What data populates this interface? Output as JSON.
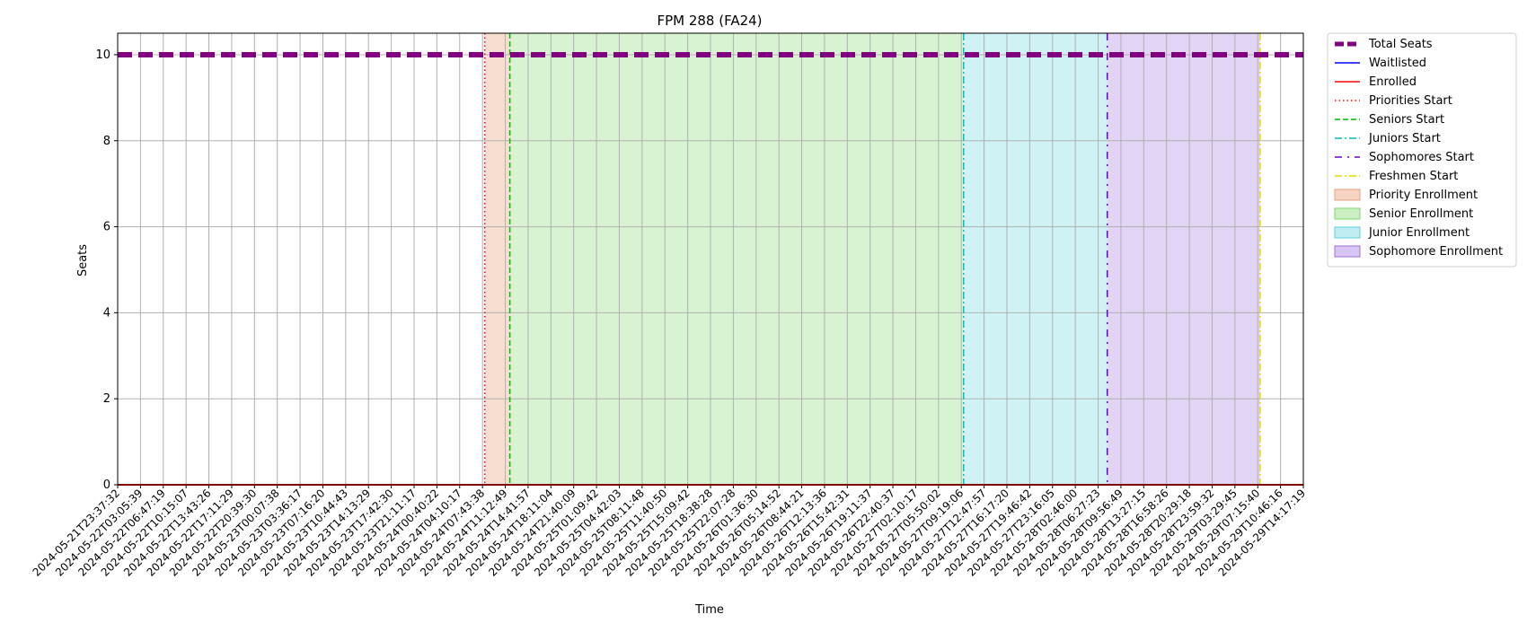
{
  "chart_data": {
    "type": "line",
    "title": "FPM 288 (FA24)",
    "xlabel": "Time",
    "ylabel": "Seats",
    "ylim": [
      0,
      10.5
    ],
    "yticks": [
      0,
      2,
      4,
      6,
      8,
      10
    ],
    "grid": true,
    "legend_position": "outside-right",
    "x": [
      "2024-05-21T23:37:32",
      "2024-05-22T03:05:39",
      "2024-05-22T06:47:19",
      "2024-05-22T10:15:07",
      "2024-05-22T13:43:26",
      "2024-05-22T17:11:29",
      "2024-05-22T20:39:30",
      "2024-05-23T00:07:38",
      "2024-05-23T03:36:17",
      "2024-05-23T07:16:20",
      "2024-05-23T10:44:43",
      "2024-05-23T14:13:29",
      "2024-05-23T17:42:30",
      "2024-05-23T21:11:17",
      "2024-05-24T00:40:22",
      "2024-05-24T04:10:17",
      "2024-05-24T07:43:38",
      "2024-05-24T11:12:49",
      "2024-05-24T14:41:57",
      "2024-05-24T18:11:04",
      "2024-05-24T21:40:09",
      "2024-05-25T01:09:42",
      "2024-05-25T04:42:03",
      "2024-05-25T08:11:48",
      "2024-05-25T11:40:50",
      "2024-05-25T15:09:42",
      "2024-05-25T18:38:28",
      "2024-05-25T22:07:28",
      "2024-05-26T01:36:30",
      "2024-05-26T05:14:52",
      "2024-05-26T08:44:21",
      "2024-05-26T12:13:36",
      "2024-05-26T15:42:31",
      "2024-05-26T19:11:37",
      "2024-05-26T22:40:37",
      "2024-05-27T02:10:17",
      "2024-05-27T05:50:02",
      "2024-05-27T09:19:06",
      "2024-05-27T12:47:57",
      "2024-05-27T16:17:20",
      "2024-05-27T19:46:42",
      "2024-05-27T23:16:05",
      "2024-05-28T02:46:00",
      "2024-05-28T06:27:23",
      "2024-05-28T09:56:49",
      "2024-05-28T13:27:15",
      "2024-05-28T16:58:26",
      "2024-05-28T20:29:18",
      "2024-05-28T23:59:32",
      "2024-05-29T03:29:45",
      "2024-05-29T07:15:40",
      "2024-05-29T10:46:16",
      "2024-05-29T14:17:19"
    ],
    "series": [
      {
        "name": "Total Seats",
        "style": "dashed-thick",
        "color": "#800080",
        "values": 10
      },
      {
        "name": "Waitlisted",
        "style": "solid",
        "color": "#0000ff",
        "values": 0
      },
      {
        "name": "Enrolled",
        "style": "solid",
        "color": "#ff0000",
        "values": 0
      }
    ],
    "markers": [
      {
        "name": "Priorities Start",
        "x": 16.1,
        "color": "#ff0000",
        "style": "dotted"
      },
      {
        "name": "Seniors Start",
        "x": 17.2,
        "color": "#00bb00",
        "style": "dashed"
      },
      {
        "name": "Juniors Start",
        "x": 37.1,
        "color": "#00bfbf",
        "style": "dashdot"
      },
      {
        "name": "Sophomores Start",
        "x": 43.4,
        "color": "#6a00cc",
        "style": "dashdotsparse"
      },
      {
        "name": "Freshmen Start",
        "x": 50.1,
        "color": "#e6d800",
        "style": "dashdot"
      }
    ],
    "spans": [
      {
        "name": "Priority Enrollment",
        "from": 16.1,
        "to": 17.2,
        "color": "#e8a07c",
        "opacity": 0.35
      },
      {
        "name": "Senior Enrollment",
        "from": 17.2,
        "to": 37.1,
        "color": "#7ed66a",
        "opacity": 0.3
      },
      {
        "name": "Junior Enrollment",
        "from": 37.1,
        "to": 43.4,
        "color": "#5fd3dc",
        "opacity": 0.3
      },
      {
        "name": "Sophomore Enrollment",
        "from": 43.4,
        "to": 50.1,
        "color": "#9d6fdc",
        "opacity": 0.3
      }
    ],
    "legend": [
      "Total Seats",
      "Waitlisted",
      "Enrolled",
      "Priorities Start",
      "Seniors Start",
      "Juniors Start",
      "Sophomores Start",
      "Freshmen Start",
      "Priority Enrollment",
      "Senior Enrollment",
      "Junior Enrollment",
      "Sophomore Enrollment"
    ]
  }
}
